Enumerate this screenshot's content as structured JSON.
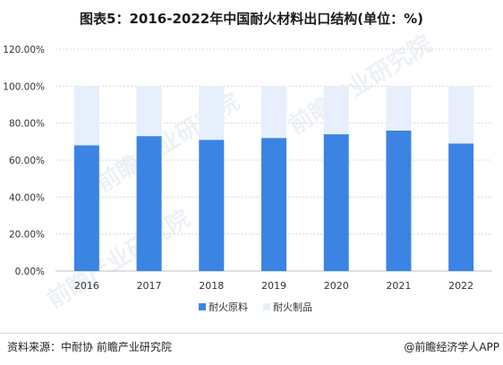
{
  "title": "图表5：2016-2022年中国耐火材料出口结构(单位：%)",
  "source": "资料来源：中耐协 前瞻产业研究院",
  "brand": "@前瞻经济学人APP",
  "watermark": "前瞻产业研究院",
  "colors": {
    "raw_material": "#3b84e4",
    "product": "#e6effb",
    "grid": "#d9d9d9",
    "axis_text": "#333333"
  },
  "chart_data": {
    "type": "bar",
    "stacked": true,
    "categories": [
      "2016",
      "2017",
      "2018",
      "2019",
      "2020",
      "2021",
      "2022"
    ],
    "series": [
      {
        "name": "耐火原料",
        "values": [
          68,
          73,
          71,
          72,
          74,
          76,
          69
        ]
      },
      {
        "name": "耐火制品",
        "values": [
          32,
          27,
          29,
          28,
          26,
          24,
          31
        ]
      }
    ],
    "ylim": [
      0,
      120
    ],
    "yticks": [
      "0.00%",
      "20.00%",
      "40.00%",
      "60.00%",
      "80.00%",
      "100.00%",
      "120.00%"
    ],
    "ytick_values": [
      0,
      20,
      40,
      60,
      80,
      100,
      120
    ],
    "grid": true,
    "legend_position": "bottom-center"
  }
}
